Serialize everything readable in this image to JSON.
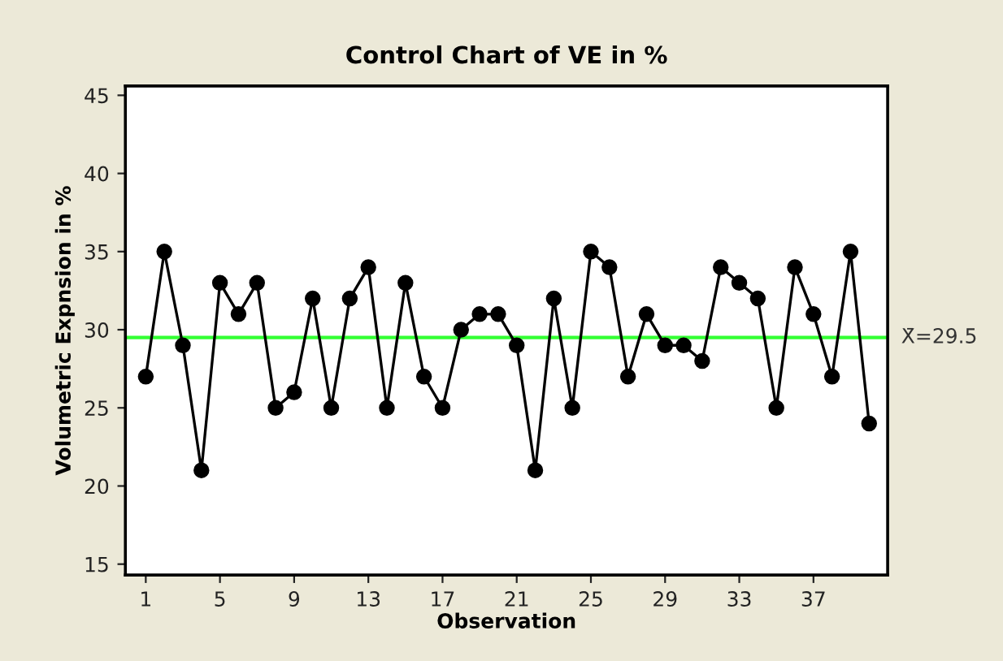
{
  "chart_data": {
    "type": "line",
    "title": "Control Chart of VE in %",
    "xlabel": "Observation",
    "ylabel": "Volumetric Expnsion in %",
    "x": [
      1,
      2,
      3,
      4,
      5,
      6,
      7,
      8,
      9,
      10,
      11,
      12,
      13,
      14,
      15,
      16,
      17,
      18,
      19,
      20,
      21,
      22,
      23,
      24,
      25,
      26,
      27,
      28,
      29,
      30,
      31,
      32,
      33,
      34,
      35,
      36,
      37,
      38,
      39,
      40
    ],
    "series": [
      {
        "color": "#000000",
        "values": [
          27,
          35,
          29,
          21,
          33,
          31,
          33,
          25,
          26,
          32,
          25,
          32,
          34,
          25,
          33,
          27,
          25,
          30,
          31,
          31,
          29,
          21,
          32,
          25,
          35,
          34,
          27,
          31,
          29,
          29,
          28,
          34,
          33,
          32,
          25,
          34,
          31,
          27,
          35,
          24
        ]
      }
    ],
    "marker": "circle",
    "line_style": "solid",
    "grid": false,
    "legend": false,
    "xlim": [
      -0.1,
      41
    ],
    "xticks": [
      1,
      5,
      9,
      13,
      17,
      21,
      25,
      29,
      33,
      37
    ],
    "ylim": [
      14.3,
      45.6
    ],
    "yticks": [
      15,
      20,
      25,
      30,
      35,
      40,
      45
    ],
    "ref_lines": [
      {
        "axis": "y",
        "value": 29.5,
        "label": "X̄=29.5",
        "color": "#33ff33"
      }
    ]
  }
}
